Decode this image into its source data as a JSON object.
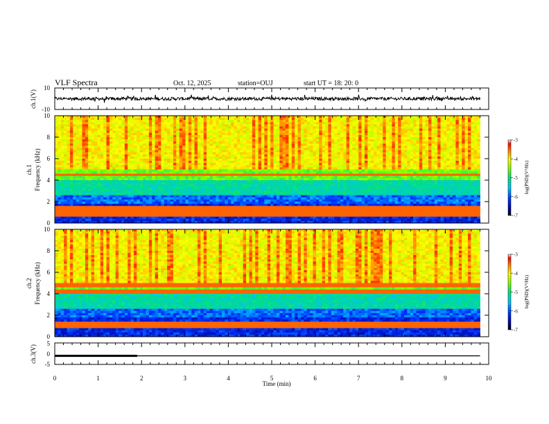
{
  "header": {
    "title": "VLF Spectra",
    "date": "Oct. 12, 2025",
    "station": "station=OUJ",
    "start": "start  UT  =   18: 20: 0"
  },
  "chart_data": [
    {
      "type": "line",
      "panel": "ch1-waveform",
      "ylabel": "ch.1(V)",
      "ylim": [
        -10,
        10
      ],
      "ytick_labels": [
        "10",
        "-10"
      ],
      "xlim": [
        0,
        10
      ],
      "description_values": {
        "baseline": 0,
        "noise_amplitude": 1.5
      }
    },
    {
      "type": "heatmap",
      "panel": "ch1-spectrogram",
      "ylabel": "ch.1",
      "ylabel2": "Frequency  (kHz)",
      "ylim": [
        0,
        10
      ],
      "ytick_labels": [
        "0",
        "2",
        "4",
        "6",
        "8",
        "10"
      ],
      "xlim": [
        0,
        9.8
      ],
      "bands_khz": [
        4.5,
        1.5,
        1.2,
        0.8
      ],
      "colorbar": {
        "label": "log(PSD)(V²/Hz)",
        "min": -7,
        "max": -3,
        "tick_labels": [
          "-3",
          "-4",
          "-5",
          "-6",
          "-7"
        ]
      }
    },
    {
      "type": "heatmap",
      "panel": "ch2-spectrogram",
      "ylabel": "ch.2",
      "ylabel2": "Frequency  (kHz)",
      "ylim": [
        0,
        10
      ],
      "ytick_labels": [
        "0",
        "2",
        "4",
        "6",
        "8",
        "10"
      ],
      "xlim": [
        0,
        9.8
      ],
      "bands_khz": [
        4.8,
        4.2,
        1.3,
        1.0
      ],
      "colorbar": {
        "label": "log(PSD)(V²/Hz)",
        "min": -7,
        "max": -3,
        "tick_labels": [
          "-3",
          "-4",
          "-5",
          "-6",
          "-7"
        ]
      }
    },
    {
      "type": "line",
      "panel": "ch3-signal",
      "ylabel": "ch.3(V)",
      "ylim": [
        -5,
        5
      ],
      "ytick_labels": [
        "5",
        "0",
        "-5"
      ],
      "xlim": [
        0,
        10
      ],
      "series": [
        {
          "x": [
            0,
            1.9
          ],
          "y": [
            -1,
            -1
          ],
          "style": "thick"
        },
        {
          "x": [
            0,
            9.8
          ],
          "y": [
            -1,
            -1
          ],
          "style": "thin"
        }
      ]
    }
  ],
  "xaxis": {
    "label": "Time  (min)",
    "tick_labels": [
      "0",
      "1",
      "2",
      "3",
      "4",
      "5",
      "6",
      "7",
      "8",
      "9",
      "10"
    ],
    "range": [
      0,
      10
    ]
  }
}
